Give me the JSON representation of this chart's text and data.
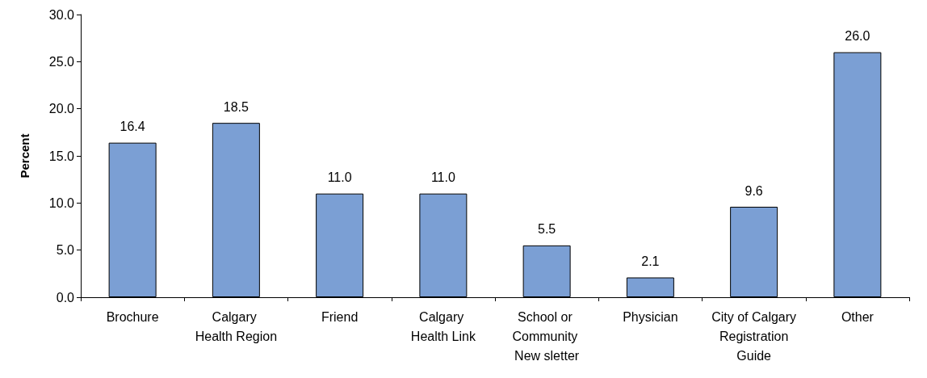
{
  "chart_data": {
    "type": "bar",
    "ylabel": "Percent",
    "categories": [
      "Brochure",
      "Calgary Health Region",
      "Friend",
      "Calgary Health Link",
      "School or Community New sletter",
      "Physician",
      "City of Calgary Registration Guide",
      "Other"
    ],
    "values": [
      16.4,
      18.5,
      11.0,
      11.0,
      5.5,
      2.1,
      9.6,
      26.0
    ],
    "color": "#7b9fd4",
    "ylim": [
      0,
      30
    ],
    "yticks": [
      {
        "value": 0,
        "label": "0.0"
      },
      {
        "value": 5,
        "label": "5.0"
      },
      {
        "value": 10,
        "label": "10.0"
      },
      {
        "value": 15,
        "label": "15.0"
      },
      {
        "value": 20,
        "label": "20.0"
      },
      {
        "value": 25,
        "label": "25.0"
      },
      {
        "value": 30,
        "label": "30.0"
      }
    ],
    "value_labels": [
      "16.4",
      "18.5",
      "11.0",
      "11.0",
      "5.5",
      "2.1",
      "9.6",
      "26.0"
    ],
    "grid": false
  }
}
